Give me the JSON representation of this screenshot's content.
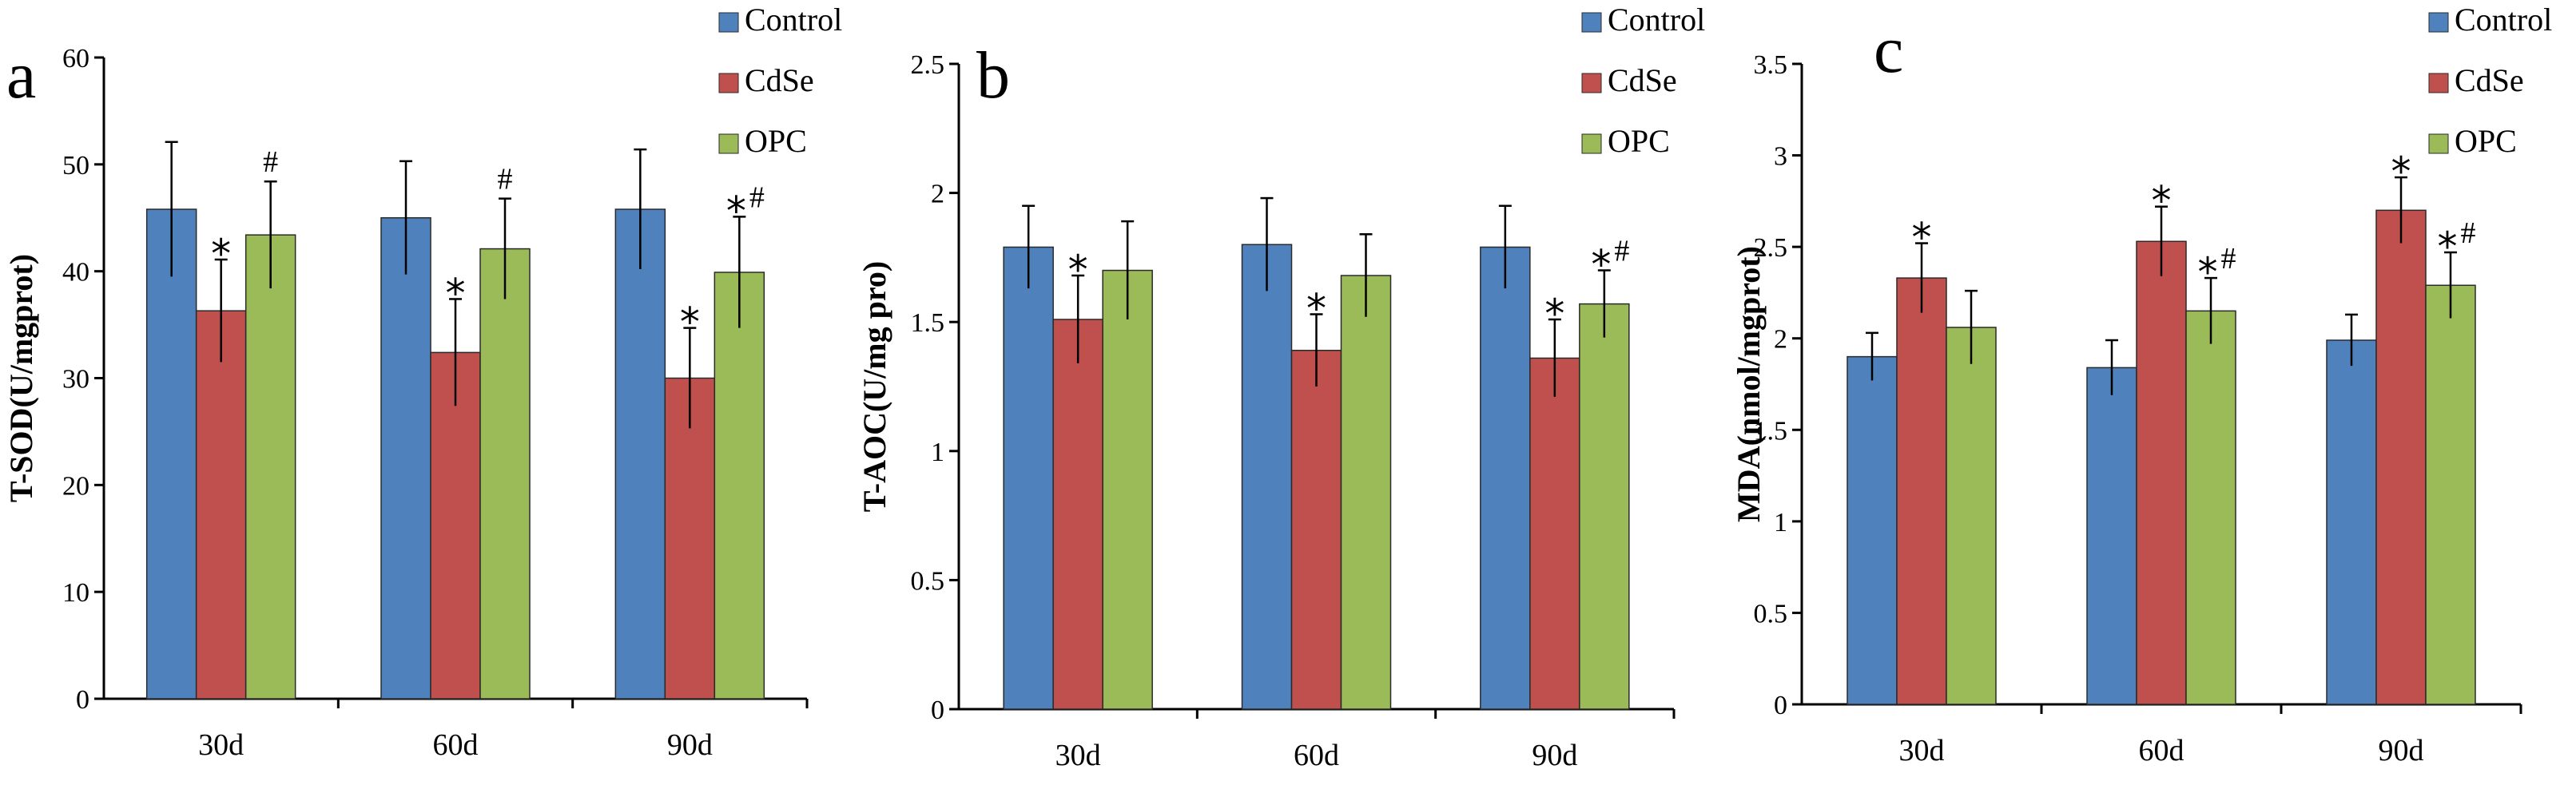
{
  "colors": {
    "Control": "#4f81bd",
    "CdSe": "#c0504d",
    "OPC": "#9bbb59",
    "bar_edge": "#2a2a2a"
  },
  "chart_data": [
    {
      "type": "bar",
      "panel_letter": "a",
      "ylabel": "T-SOD(U/mgprot)",
      "categories": [
        "30d",
        "60d",
        "90d"
      ],
      "ylim": [
        0,
        60
      ],
      "yticks": [
        0,
        10,
        20,
        30,
        40,
        50,
        60
      ],
      "ytick_labels": [
        "0",
        "10",
        "20",
        "30",
        "40",
        "50",
        "60"
      ],
      "series": [
        {
          "name": "Control",
          "values": [
            45.8,
            45.0,
            45.8
          ],
          "errors": [
            6.3,
            5.3,
            5.6
          ],
          "marks": [
            "",
            "",
            ""
          ]
        },
        {
          "name": "CdSe",
          "values": [
            36.3,
            32.4,
            30.0
          ],
          "errors": [
            4.8,
            5.0,
            4.7
          ],
          "marks": [
            "*",
            "*",
            "*"
          ]
        },
        {
          "name": "OPC",
          "values": [
            43.4,
            42.1,
            39.9
          ],
          "errors": [
            5.0,
            4.7,
            5.2
          ],
          "marks": [
            "#",
            "#",
            "*#"
          ]
        }
      ]
    },
    {
      "type": "bar",
      "panel_letter": "b",
      "ylabel": "T-AOC(U/mg pro)",
      "categories": [
        "30d",
        "60d",
        "90d"
      ],
      "ylim": [
        0,
        2.5
      ],
      "yticks": [
        0,
        0.5,
        1,
        1.5,
        2,
        2.5
      ],
      "ytick_labels": [
        "0",
        "0.5",
        "1",
        "1.5",
        "2",
        "2.5"
      ],
      "series": [
        {
          "name": "Control",
          "values": [
            1.79,
            1.8,
            1.79
          ],
          "errors": [
            0.16,
            0.18,
            0.16
          ],
          "marks": [
            "",
            "",
            ""
          ]
        },
        {
          "name": "CdSe",
          "values": [
            1.51,
            1.39,
            1.36
          ],
          "errors": [
            0.17,
            0.14,
            0.15
          ],
          "marks": [
            "*",
            "*",
            "*"
          ]
        },
        {
          "name": "OPC",
          "values": [
            1.7,
            1.68,
            1.57
          ],
          "errors": [
            0.19,
            0.16,
            0.13
          ],
          "marks": [
            "",
            "",
            "*#"
          ]
        }
      ]
    },
    {
      "type": "bar",
      "panel_letter": "c",
      "ylabel": "MDA(nmol/mgprot)",
      "categories": [
        "30d",
        "60d",
        "90d"
      ],
      "ylim": [
        0,
        3.5
      ],
      "yticks": [
        0,
        0.5,
        1,
        1.5,
        2,
        2.5,
        3,
        3.5
      ],
      "ytick_labels": [
        "0",
        "0.5",
        "1",
        "1.5",
        "2",
        "2.5",
        "3",
        "3.5"
      ],
      "series": [
        {
          "name": "Control",
          "values": [
            1.9,
            1.84,
            1.99
          ],
          "errors": [
            0.13,
            0.15,
            0.14
          ],
          "marks": [
            "",
            "",
            ""
          ]
        },
        {
          "name": "CdSe",
          "values": [
            2.33,
            2.53,
            2.7
          ],
          "errors": [
            0.19,
            0.19,
            0.18
          ],
          "marks": [
            "*",
            "*",
            "*"
          ]
        },
        {
          "name": "OPC",
          "values": [
            2.06,
            2.15,
            2.29
          ],
          "errors": [
            0.2,
            0.18,
            0.18
          ],
          "marks": [
            "",
            "*#",
            "*#"
          ]
        }
      ]
    }
  ]
}
